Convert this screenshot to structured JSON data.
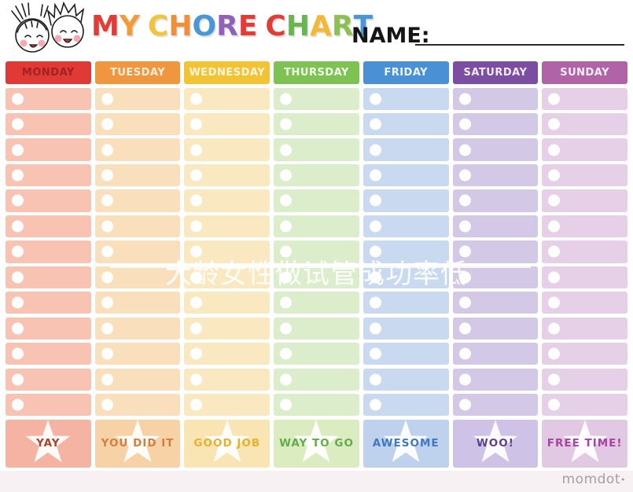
{
  "page": {
    "watermark": "大龄女性做试管成功率低",
    "brand": "momdot",
    "brand_dot": "•",
    "bottom_tint": "#f8f1f3"
  },
  "header": {
    "title": "MY CHORE CHART",
    "title_letters": [
      {
        "ch": "M",
        "color": "#e23c35"
      },
      {
        "ch": "Y",
        "color": "#f29b38"
      },
      {
        "ch": " "
      },
      {
        "ch": "C",
        "color": "#f2c43a"
      },
      {
        "ch": "H",
        "color": "#ef8f3b"
      },
      {
        "ch": "O",
        "color": "#4a97d8"
      },
      {
        "ch": "R",
        "color": "#9160b8"
      },
      {
        "ch": "E",
        "color": "#e23c35"
      },
      {
        "ch": " "
      },
      {
        "ch": "C",
        "color": "#e23c35"
      },
      {
        "ch": "H",
        "color": "#69b64e"
      },
      {
        "ch": "A",
        "color": "#f2b836"
      },
      {
        "ch": "R",
        "color": "#8cc152"
      },
      {
        "ch": "T",
        "color": "#4a97d8"
      }
    ],
    "name_label": "NAME:",
    "kids_illustration": "two-kids-faces"
  },
  "table": {
    "rows_per_column": 13,
    "days": [
      {
        "label": "MONDAY",
        "header_bg": "#e13a36",
        "header_text": "#9f2321",
        "cell_bg": "#f9c3b4",
        "footer_bg": "#f5b4a3",
        "footer_label": "YAY",
        "footer_label_color": "#a8432b"
      },
      {
        "label": "TUESDAY",
        "header_bg": "#f0963e",
        "header_text": "#fbeedd",
        "cell_bg": "#fadfbc",
        "footer_bg": "#f8d2a7",
        "footer_label": "YOU DID IT",
        "footer_label_color": "#d37f3c"
      },
      {
        "label": "WEDNESDAY",
        "header_bg": "#f1c335",
        "header_text": "#fdf6dc",
        "cell_bg": "#fae9c0",
        "footer_bg": "#f8e5b3",
        "footer_label": "GOOD JOB",
        "footer_label_color": "#e3b22f"
      },
      {
        "label": "THURSDAY",
        "header_bg": "#7dc253",
        "header_text": "#f3fae9",
        "cell_bg": "#dbedcb",
        "footer_bg": "#dcecc1",
        "footer_label": "WAY TO GO",
        "footer_label_color": "#63ac4b"
      },
      {
        "label": "FRIDAY",
        "header_bg": "#4a90d4",
        "header_text": "#eef5fd",
        "cell_bg": "#c8d9f0",
        "footer_bg": "#bed2ee",
        "footer_label": "AWESOME",
        "footer_label_color": "#4178c4"
      },
      {
        "label": "SATURDAY",
        "header_bg": "#7c4ea1",
        "header_text": "#f1e9f7",
        "cell_bg": "#d4c8e7",
        "footer_bg": "#cfc2e7",
        "footer_label": "WOO!",
        "footer_label_color": "#5c4192"
      },
      {
        "label": "SUNDAY",
        "header_bg": "#b163a7",
        "header_text": "#f9eef7",
        "cell_bg": "#e6d0e7",
        "footer_bg": "#e2c9e3",
        "footer_label": "FREE TIME!",
        "footer_label_color": "#a545a1"
      }
    ]
  }
}
